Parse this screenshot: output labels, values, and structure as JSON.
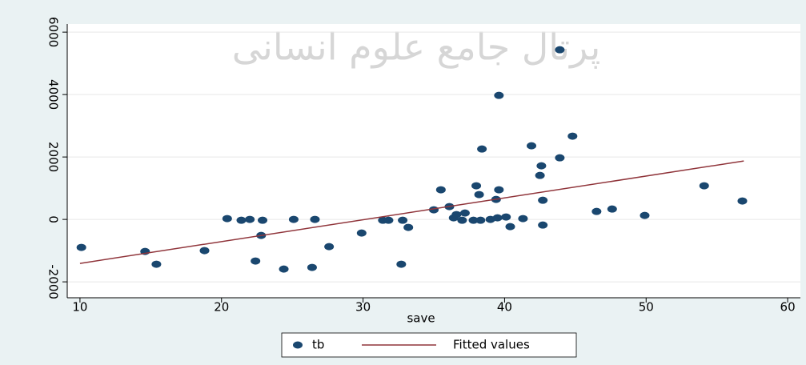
{
  "chart_data": {
    "type": "scatter",
    "watermark": "پرتال جامع علوم انسانی",
    "x_label": "save",
    "xlim": [
      9.1,
      60.9
    ],
    "xticks": [
      10,
      20,
      30,
      40,
      50,
      60
    ],
    "ylim": [
      -2510,
      6260
    ],
    "yticks": [
      -2000,
      0,
      2000,
      4000,
      6000
    ],
    "grid": true,
    "series": [
      {
        "name": "tb",
        "type": "scatter",
        "color": "#1a476f",
        "x": [
          10.1,
          14.6,
          15.4,
          18.8,
          20.4,
          21.4,
          22.0,
          22.4,
          22.8,
          22.9,
          24.4,
          25.1,
          26.4,
          26.6,
          27.6,
          29.9,
          31.4,
          31.8,
          32.7,
          32.8,
          33.2,
          35.0,
          35.5,
          36.1,
          36.4,
          36.6,
          37.0,
          37.2,
          37.8,
          38.0,
          38.2,
          38.3,
          38.4,
          39.0,
          39.4,
          39.5,
          39.6,
          39.6,
          40.1,
          40.4,
          41.3,
          41.9,
          42.5,
          42.6,
          42.7,
          42.7,
          43.9,
          43.9,
          44.8,
          46.5,
          47.6,
          49.9,
          54.1,
          56.8
        ],
        "values": [
          -897,
          -1026,
          -1436,
          -1000,
          26,
          -26,
          0,
          -1333,
          -513,
          -26,
          -1590,
          0,
          -1538,
          0,
          -872,
          -436,
          -26,
          -26,
          -1436,
          -26,
          -256,
          308,
          949,
          410,
          51,
          154,
          -26,
          205,
          -26,
          1077,
          795,
          -26,
          2256,
          0,
          641,
          51,
          3974,
          949,
          77,
          -231,
          26,
          2359,
          1410,
          1718,
          -180,
          615,
          1974,
          5436,
          2667,
          256,
          333,
          128,
          1077,
          590
        ]
      },
      {
        "name": "Fitted values",
        "type": "line",
        "color": "#90353b",
        "x": [
          10.0,
          56.9
        ],
        "values": [
          -1410,
          1872
        ]
      }
    ]
  }
}
